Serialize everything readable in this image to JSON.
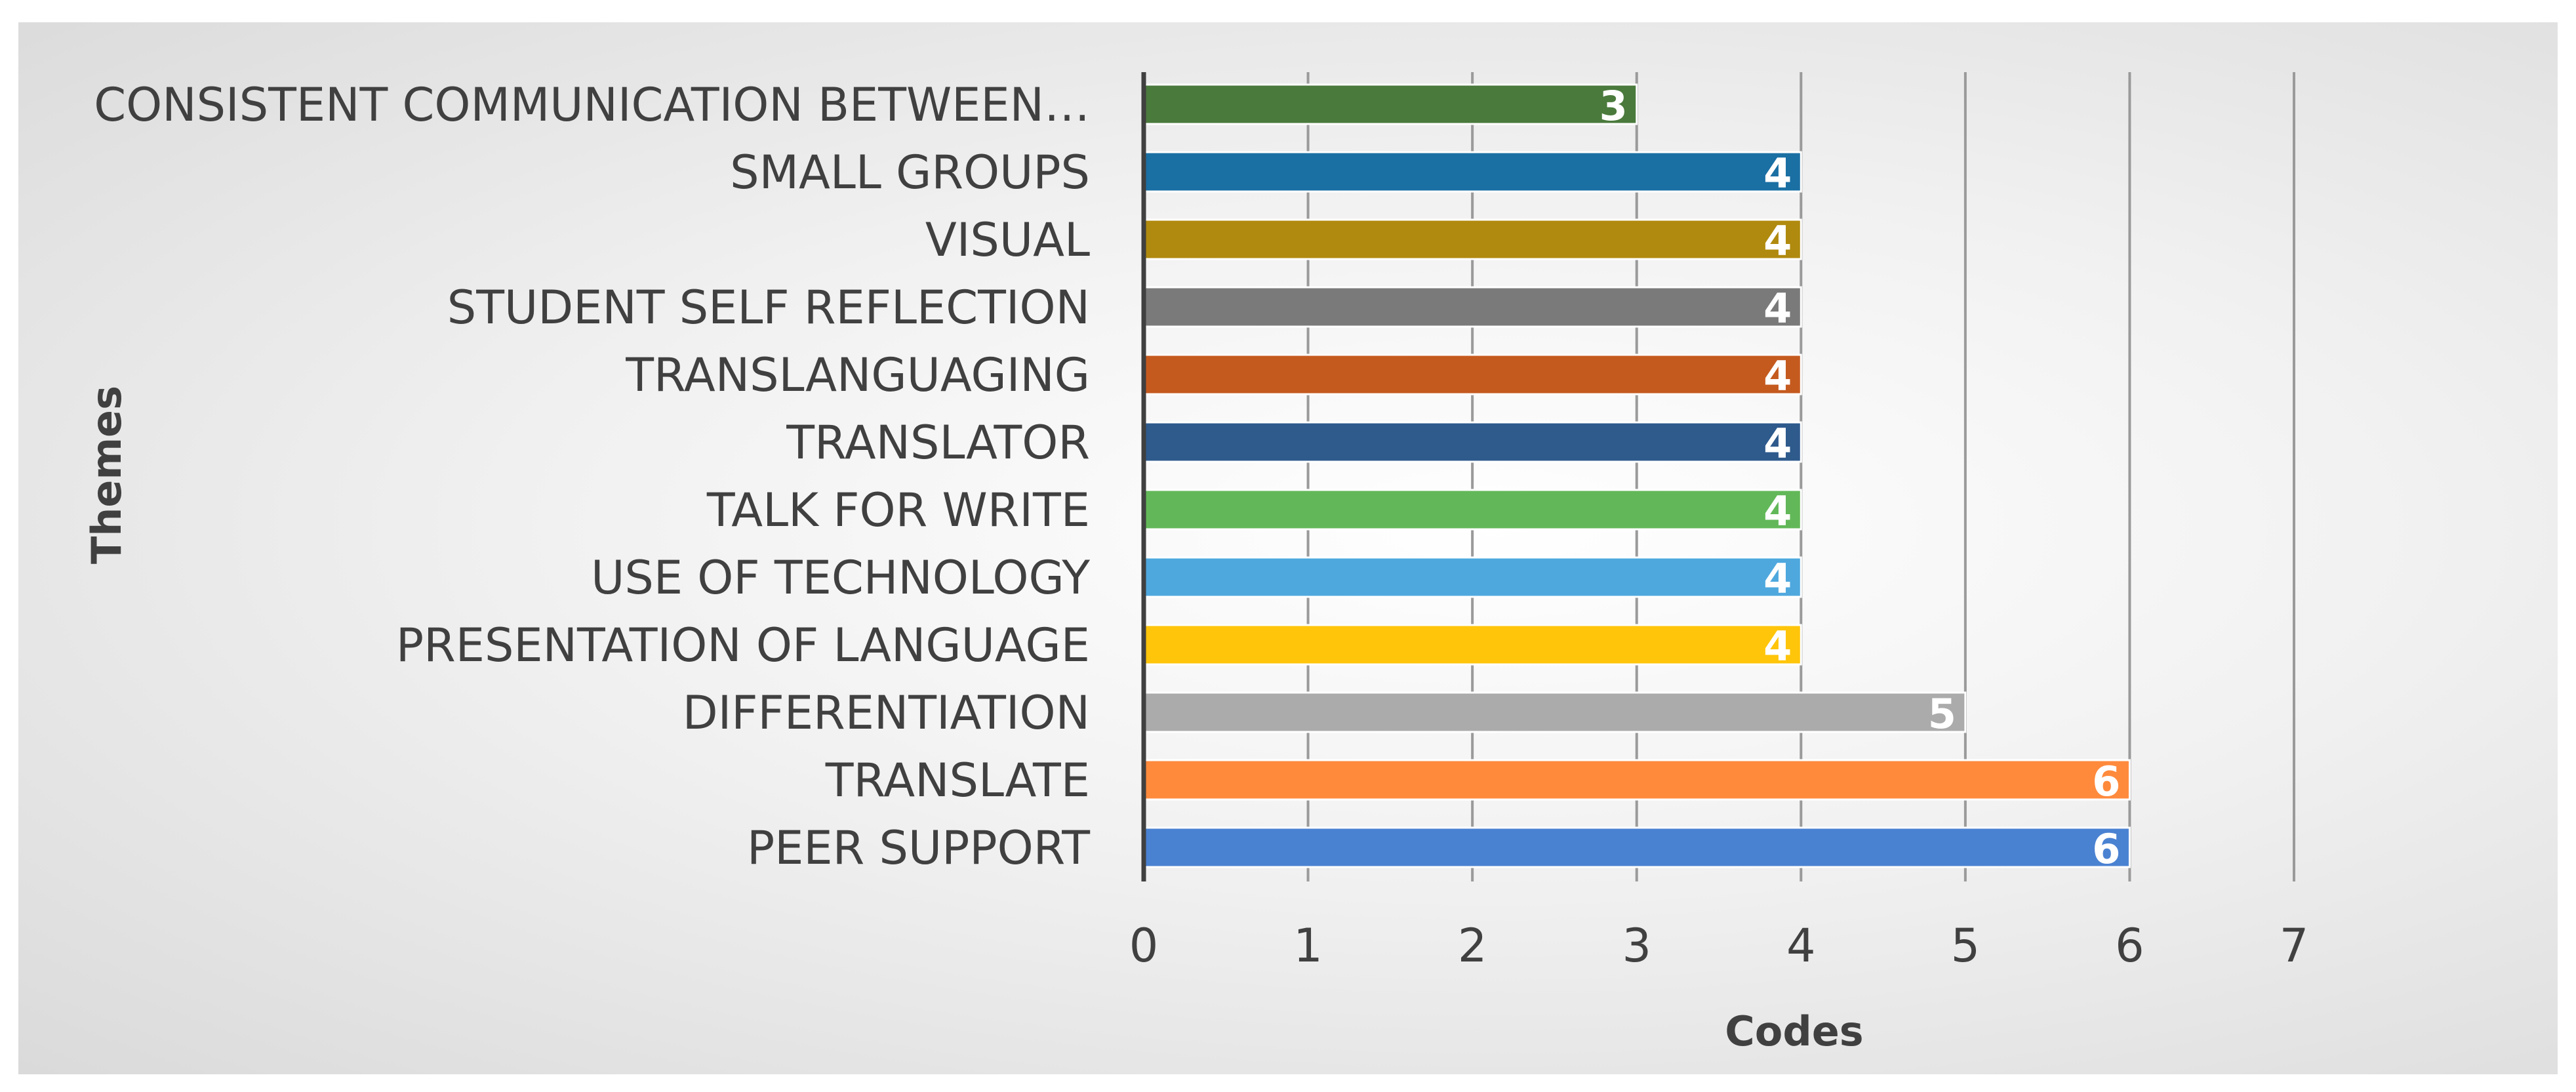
{
  "chart_data": {
    "type": "bar",
    "orientation": "horizontal",
    "title": "",
    "xlabel": "Codes",
    "ylabel": "Themes",
    "xlim": [
      0,
      7
    ],
    "xticks": [
      "0",
      "1",
      "2",
      "3",
      "4",
      "5",
      "6",
      "7"
    ],
    "grid": true,
    "categories": [
      "CONSISTENT COMMUNICATION BETWEEN…",
      "SMALL GROUPS",
      "VISUAL",
      "STUDENT SELF REFLECTION",
      "TRANSLANGUAGING",
      "TRANSLATOR",
      "TALK FOR WRITE",
      "USE OF TECHNOLOGY",
      "PRESENTATION OF LANGUAGE",
      "DIFFERENTIATION",
      "TRANSLATE",
      "PEER SUPPORT"
    ],
    "values": [
      3,
      4,
      4,
      4,
      4,
      4,
      4,
      4,
      4,
      5,
      6,
      6
    ],
    "data_labels": [
      "3",
      "4",
      "4",
      "4",
      "4",
      "4",
      "4",
      "4",
      "4",
      "5",
      "6",
      "6"
    ],
    "colors": [
      "#4A7A3C",
      "#1A6FA3",
      "#B08A0E",
      "#7A7A7A",
      "#C55A1F",
      "#2E5A8C",
      "#62B858",
      "#4EA8DE",
      "#FFC50A",
      "#ABABAB",
      "#FF8A3C",
      "#4A82D2"
    ]
  }
}
